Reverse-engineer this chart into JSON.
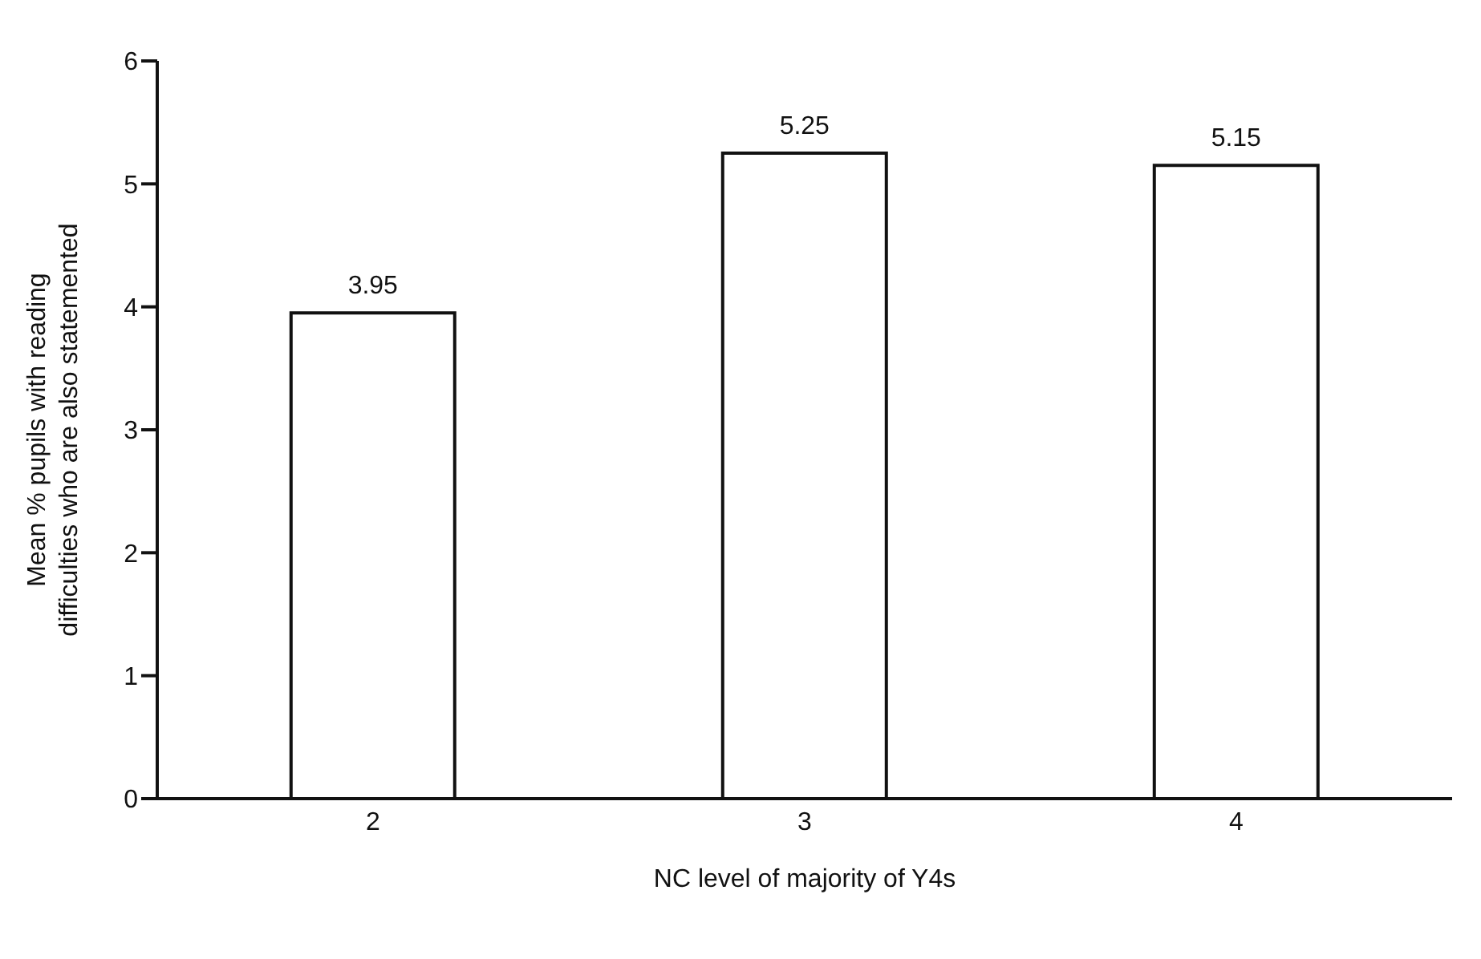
{
  "chart_data": {
    "type": "bar",
    "xlabel": "NC level of majority of Y4s",
    "ylabel": "Mean % pupils with reading difficulties who are also statemented",
    "categories": [
      "2",
      "3",
      "4"
    ],
    "values": [
      3.95,
      5.25,
      5.15
    ],
    "color": "#ffffff",
    "ylim": [
      0,
      6
    ],
    "yticks": [
      0,
      1,
      2,
      3,
      4,
      5,
      6
    ],
    "grid": false,
    "legend": false,
    "data_labels": true
  }
}
